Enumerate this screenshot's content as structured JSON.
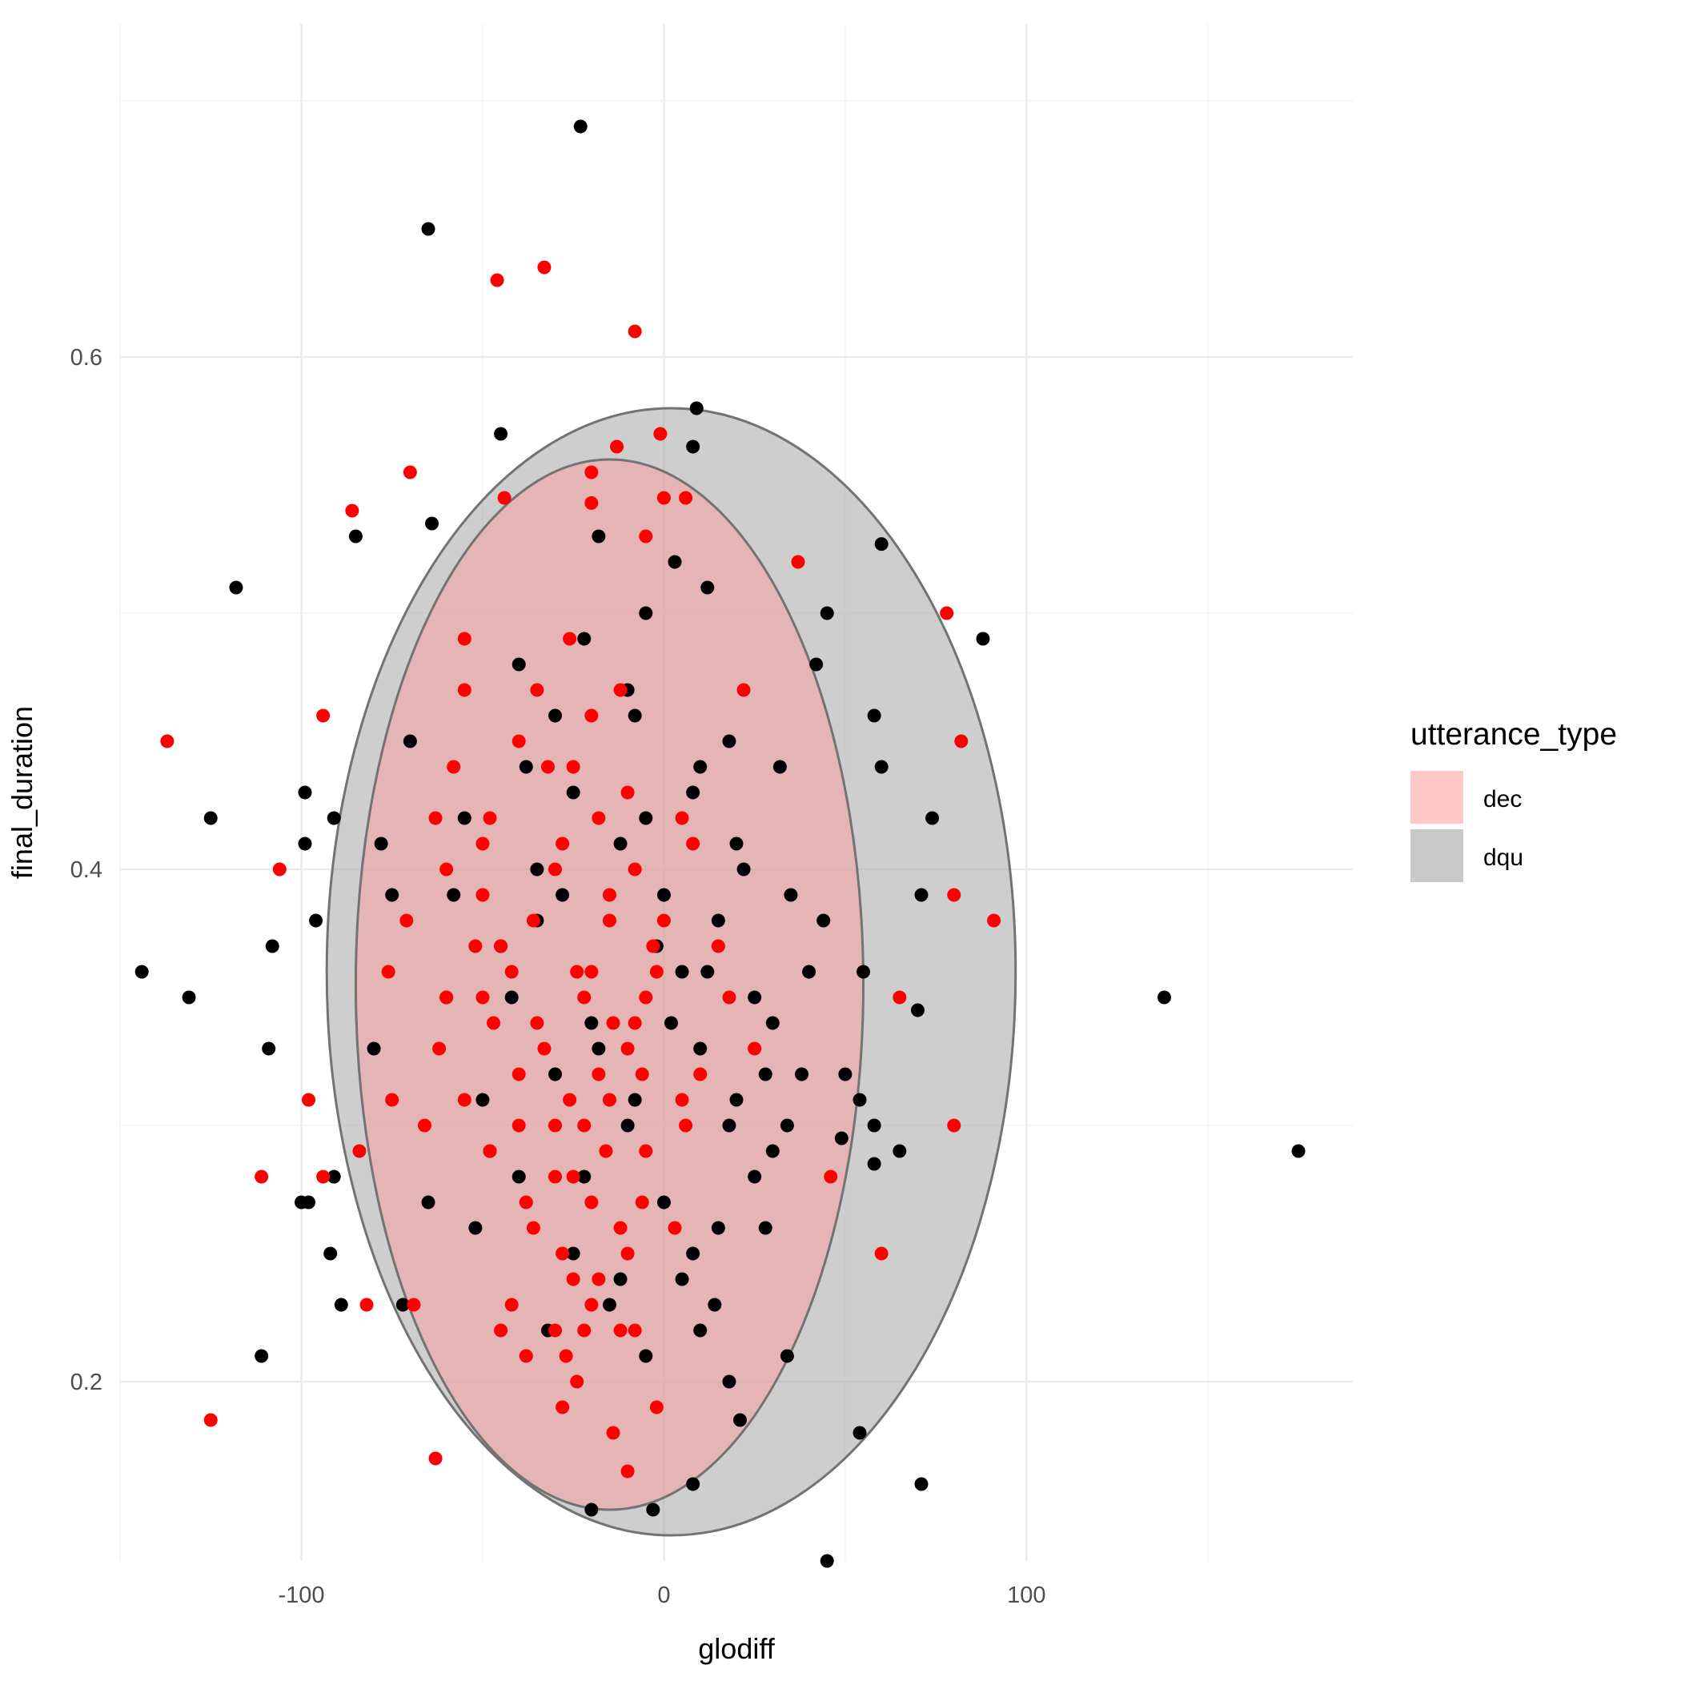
{
  "chart_data": {
    "type": "scatter",
    "title": "",
    "xlabel": "glodiff",
    "ylabel": "final_duration",
    "xlim": [
      -150,
      190
    ],
    "ylim": [
      0.13,
      0.73
    ],
    "x_ticks": [
      -100,
      0,
      100
    ],
    "x_tick_labels": [
      "-100",
      "0",
      "100"
    ],
    "y_ticks": [
      0.2,
      0.4,
      0.6
    ],
    "y_tick_labels": [
      "0.2",
      "0.4",
      "0.6"
    ],
    "grid": true,
    "legend": {
      "title": "utterance_type",
      "placement": "right",
      "entries": [
        {
          "label": "dec",
          "fill": "#ffc9c9"
        },
        {
          "label": "dqu",
          "fill": "#c9c9c9"
        }
      ]
    },
    "ellipses": [
      {
        "series": "dqu",
        "cx": 2,
        "cy": 0.36,
        "rx": 95,
        "ry": 0.22,
        "fill": "#a6a6a6",
        "opacity": 0.55,
        "stroke": "#737373"
      },
      {
        "series": "dec",
        "cx": -15,
        "cy": 0.355,
        "rx": 70,
        "ry": 0.205,
        "fill": "#f8a0a0",
        "opacity": 0.55,
        "stroke": "#737373"
      }
    ],
    "series": [
      {
        "name": "dqu",
        "color": "#000000",
        "points": [
          [
            -23,
            0.69
          ],
          [
            -65,
            0.65
          ],
          [
            9,
            0.58
          ],
          [
            -45,
            0.57
          ],
          [
            8,
            0.565
          ],
          [
            -64,
            0.535
          ],
          [
            -85,
            0.53
          ],
          [
            60,
            0.527
          ],
          [
            -118,
            0.51
          ],
          [
            45,
            0.5
          ],
          [
            88,
            0.49
          ],
          [
            42,
            0.48
          ],
          [
            58,
            0.46
          ],
          [
            60,
            0.44
          ],
          [
            -99,
            0.43
          ],
          [
            -125,
            0.42
          ],
          [
            -91,
            0.42
          ],
          [
            74,
            0.42
          ],
          [
            -99,
            0.41
          ],
          [
            71,
            0.39
          ],
          [
            -96,
            0.38
          ],
          [
            -108,
            0.37
          ],
          [
            -144,
            0.36
          ],
          [
            -131,
            0.35
          ],
          [
            55,
            0.36
          ],
          [
            70,
            0.345
          ],
          [
            138,
            0.35
          ],
          [
            -109,
            0.33
          ],
          [
            50,
            0.32
          ],
          [
            54,
            0.31
          ],
          [
            58,
            0.3
          ],
          [
            49,
            0.295
          ],
          [
            58,
            0.285
          ],
          [
            65,
            0.29
          ],
          [
            175,
            0.29
          ],
          [
            -91,
            0.28
          ],
          [
            -98,
            0.27
          ],
          [
            -100,
            0.27
          ],
          [
            -92,
            0.25
          ],
          [
            -89,
            0.23
          ],
          [
            -111,
            0.21
          ],
          [
            34,
            0.21
          ],
          [
            54,
            0.18
          ],
          [
            71,
            0.16
          ],
          [
            45,
            0.13
          ],
          [
            -20,
            0.15
          ],
          [
            -3,
            0.15
          ],
          [
            18,
            0.2
          ],
          [
            21,
            0.185
          ],
          [
            8,
            0.16
          ],
          [
            -40,
            0.48
          ],
          [
            -30,
            0.46
          ],
          [
            -10,
            0.47
          ],
          [
            10,
            0.44
          ],
          [
            -25,
            0.43
          ],
          [
            -5,
            0.42
          ],
          [
            20,
            0.41
          ],
          [
            -35,
            0.4
          ],
          [
            0,
            0.39
          ],
          [
            15,
            0.38
          ],
          [
            -45,
            0.37
          ],
          [
            5,
            0.36
          ],
          [
            25,
            0.35
          ],
          [
            -20,
            0.34
          ],
          [
            10,
            0.33
          ],
          [
            -30,
            0.32
          ],
          [
            20,
            0.31
          ],
          [
            -10,
            0.3
          ],
          [
            30,
            0.29
          ],
          [
            -40,
            0.28
          ],
          [
            0,
            0.27
          ],
          [
            15,
            0.26
          ],
          [
            -25,
            0.25
          ],
          [
            5,
            0.24
          ],
          [
            -15,
            0.23
          ],
          [
            10,
            0.22
          ],
          [
            -35,
            0.38
          ],
          [
            -55,
            0.42
          ],
          [
            -70,
            0.45
          ],
          [
            -75,
            0.39
          ],
          [
            -60,
            0.35
          ],
          [
            -50,
            0.31
          ],
          [
            -65,
            0.27
          ],
          [
            -72,
            0.23
          ],
          [
            32,
            0.44
          ],
          [
            35,
            0.39
          ],
          [
            30,
            0.34
          ],
          [
            34,
            0.3
          ],
          [
            28,
            0.26
          ],
          [
            25,
            0.28
          ],
          [
            -5,
            0.5
          ],
          [
            12,
            0.51
          ],
          [
            -18,
            0.53
          ],
          [
            3,
            0.52
          ],
          [
            -22,
            0.49
          ],
          [
            -8,
            0.46
          ],
          [
            18,
            0.45
          ],
          [
            -38,
            0.44
          ],
          [
            8,
            0.43
          ],
          [
            -12,
            0.41
          ],
          [
            22,
            0.4
          ],
          [
            -28,
            0.39
          ],
          [
            -2,
            0.37
          ],
          [
            12,
            0.36
          ],
          [
            -42,
            0.35
          ],
          [
            2,
            0.34
          ],
          [
            -18,
            0.33
          ],
          [
            28,
            0.32
          ],
          [
            -8,
            0.31
          ],
          [
            18,
            0.3
          ],
          [
            -48,
            0.29
          ],
          [
            -22,
            0.28
          ],
          [
            8,
            0.25
          ],
          [
            -12,
            0.24
          ],
          [
            -32,
            0.22
          ],
          [
            -5,
            0.21
          ],
          [
            14,
            0.23
          ],
          [
            -58,
            0.39
          ],
          [
            -78,
            0.41
          ],
          [
            -80,
            0.33
          ],
          [
            -52,
            0.26
          ],
          [
            40,
            0.36
          ],
          [
            38,
            0.32
          ],
          [
            44,
            0.38
          ]
        ]
      },
      {
        "name": "dec",
        "color": "#ff0000",
        "points": [
          [
            -46,
            0.63
          ],
          [
            -33,
            0.635
          ],
          [
            -8,
            0.61
          ],
          [
            -1,
            0.57
          ],
          [
            -13,
            0.565
          ],
          [
            -20,
            0.555
          ],
          [
            -70,
            0.555
          ],
          [
            -44,
            0.545
          ],
          [
            -86,
            0.54
          ],
          [
            -20,
            0.543
          ],
          [
            0,
            0.545
          ],
          [
            6,
            0.545
          ],
          [
            37,
            0.52
          ],
          [
            -5,
            0.53
          ],
          [
            78,
            0.5
          ],
          [
            -55,
            0.49
          ],
          [
            -26,
            0.49
          ],
          [
            22,
            0.47
          ],
          [
            -137,
            0.45
          ],
          [
            -94,
            0.46
          ],
          [
            82,
            0.45
          ],
          [
            -106,
            0.4
          ],
          [
            -63,
            0.42
          ],
          [
            80,
            0.39
          ],
          [
            91,
            0.38
          ],
          [
            -71,
            0.38
          ],
          [
            -76,
            0.36
          ],
          [
            65,
            0.35
          ],
          [
            -98,
            0.31
          ],
          [
            -84,
            0.29
          ],
          [
            80,
            0.3
          ],
          [
            -111,
            0.28
          ],
          [
            -94,
            0.28
          ],
          [
            46,
            0.28
          ],
          [
            60,
            0.25
          ],
          [
            -82,
            0.23
          ],
          [
            -69,
            0.23
          ],
          [
            -125,
            0.185
          ],
          [
            -63,
            0.17
          ],
          [
            -55,
            0.47
          ],
          [
            -40,
            0.45
          ],
          [
            -25,
            0.44
          ],
          [
            -10,
            0.43
          ],
          [
            5,
            0.42
          ],
          [
            -50,
            0.41
          ],
          [
            -30,
            0.4
          ],
          [
            -15,
            0.39
          ],
          [
            0,
            0.38
          ],
          [
            -45,
            0.37
          ],
          [
            -20,
            0.36
          ],
          [
            -5,
            0.35
          ],
          [
            -35,
            0.34
          ],
          [
            -10,
            0.33
          ],
          [
            -40,
            0.32
          ],
          [
            -15,
            0.31
          ],
          [
            -30,
            0.3
          ],
          [
            -5,
            0.29
          ],
          [
            -25,
            0.28
          ],
          [
            -38,
            0.27
          ],
          [
            -12,
            0.26
          ],
          [
            -28,
            0.25
          ],
          [
            -18,
            0.24
          ],
          [
            -42,
            0.23
          ],
          [
            -22,
            0.22
          ],
          [
            -8,
            0.22
          ],
          [
            -27,
            0.21
          ],
          [
            -14,
            0.18
          ],
          [
            -10,
            0.165
          ],
          [
            -28,
            0.19
          ],
          [
            -24,
            0.2
          ],
          [
            -2,
            0.19
          ],
          [
            -60,
            0.35
          ],
          [
            -55,
            0.31
          ],
          [
            -62,
            0.33
          ],
          [
            -48,
            0.29
          ],
          [
            -66,
            0.3
          ],
          [
            -75,
            0.31
          ],
          [
            -60,
            0.4
          ],
          [
            -35,
            0.47
          ],
          [
            -20,
            0.46
          ],
          [
            -12,
            0.47
          ],
          [
            8,
            0.41
          ],
          [
            15,
            0.37
          ],
          [
            -32,
            0.44
          ],
          [
            -18,
            0.42
          ],
          [
            -8,
            0.4
          ],
          [
            -3,
            0.37
          ],
          [
            -22,
            0.35
          ],
          [
            -33,
            0.33
          ],
          [
            -26,
            0.31
          ],
          [
            -16,
            0.29
          ],
          [
            -6,
            0.27
          ],
          [
            -36,
            0.26
          ],
          [
            -20,
            0.27
          ],
          [
            3,
            0.26
          ],
          [
            -10,
            0.25
          ],
          [
            -25,
            0.24
          ],
          [
            -30,
            0.22
          ],
          [
            -45,
            0.22
          ],
          [
            -38,
            0.21
          ],
          [
            -20,
            0.23
          ],
          [
            -12,
            0.22
          ],
          [
            10,
            0.32
          ],
          [
            18,
            0.35
          ],
          [
            25,
            0.33
          ],
          [
            5,
            0.31
          ],
          [
            -50,
            0.39
          ],
          [
            -42,
            0.36
          ],
          [
            -47,
            0.34
          ],
          [
            -52,
            0.37
          ],
          [
            -58,
            0.44
          ],
          [
            -48,
            0.42
          ],
          [
            -28,
            0.41
          ],
          [
            -15,
            0.38
          ],
          [
            -2,
            0.36
          ],
          [
            -8,
            0.34
          ],
          [
            -18,
            0.32
          ],
          [
            -30,
            0.28
          ],
          [
            -24,
            0.36
          ],
          [
            -14,
            0.34
          ],
          [
            -36,
            0.38
          ],
          [
            -40,
            0.3
          ],
          [
            -22,
            0.3
          ],
          [
            -6,
            0.32
          ],
          [
            6,
            0.3
          ],
          [
            -50,
            0.35
          ]
        ]
      }
    ]
  }
}
